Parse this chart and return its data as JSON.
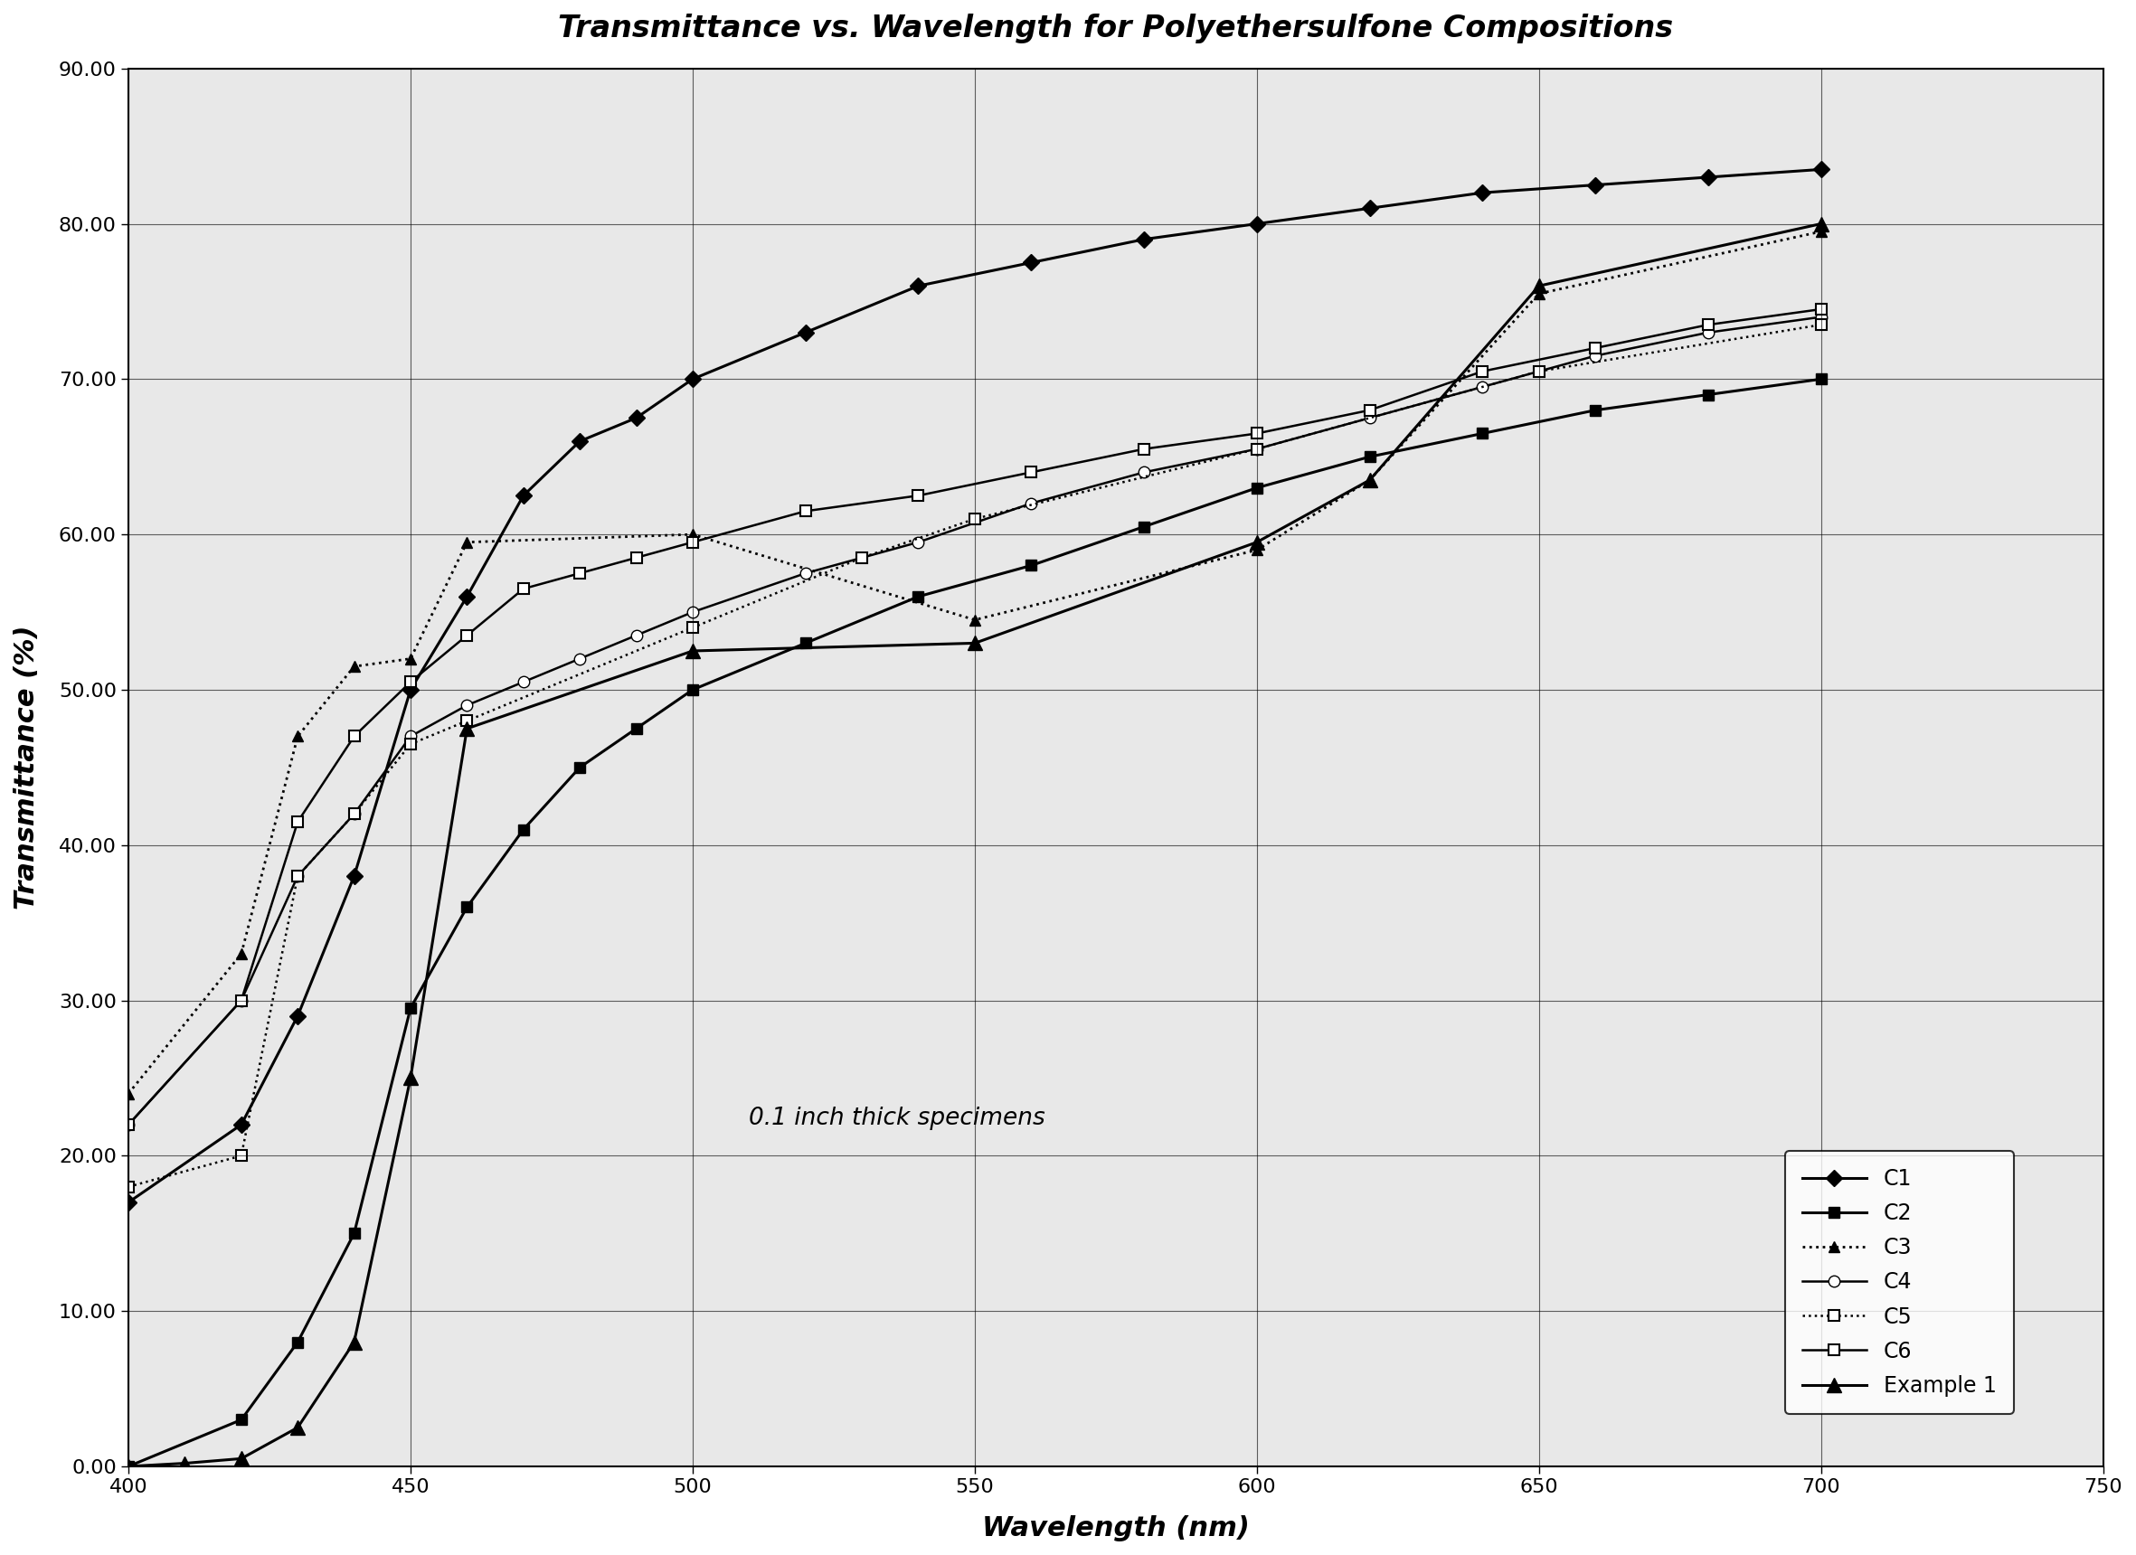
{
  "title": "Transmittance vs. Wavelength for Polyethersulfone Compositions",
  "xlabel": "Wavelength (nm)",
  "ylabel": "Transmittance (%)",
  "annotation": "0.1 inch thick specimens",
  "xlim": [
    400,
    750
  ],
  "ylim": [
    0.0,
    90.0
  ],
  "xticks": [
    400,
    450,
    500,
    550,
    600,
    650,
    700,
    750
  ],
  "yticks": [
    0.0,
    10.0,
    20.0,
    30.0,
    40.0,
    50.0,
    60.0,
    70.0,
    80.0,
    90.0
  ],
  "C1_x": [
    400,
    420,
    430,
    440,
    450,
    460,
    470,
    480,
    490,
    500,
    520,
    540,
    560,
    580,
    600,
    620,
    640,
    660,
    680,
    700
  ],
  "C1_y": [
    17.0,
    22.0,
    29.0,
    38.0,
    50.0,
    56.0,
    62.5,
    66.0,
    67.5,
    70.0,
    73.0,
    76.0,
    77.5,
    79.0,
    80.0,
    81.0,
    82.0,
    82.5,
    83.0,
    83.5
  ],
  "C2_x": [
    400,
    420,
    430,
    440,
    450,
    460,
    470,
    480,
    490,
    500,
    520,
    540,
    560,
    580,
    600,
    620,
    640,
    660,
    680,
    700
  ],
  "C2_y": [
    0.0,
    3.0,
    8.0,
    15.0,
    29.5,
    36.0,
    41.0,
    45.0,
    47.5,
    50.0,
    53.0,
    56.0,
    58.0,
    60.5,
    63.0,
    65.0,
    66.5,
    68.0,
    69.0,
    70.0
  ],
  "C3_x": [
    400,
    420,
    430,
    440,
    450,
    460,
    500,
    550,
    600,
    620,
    650,
    700
  ],
  "C3_y": [
    24.0,
    33.0,
    47.0,
    51.5,
    52.0,
    59.5,
    60.0,
    54.5,
    59.0,
    63.5,
    75.5,
    79.5
  ],
  "C4_x": [
    400,
    420,
    430,
    440,
    450,
    460,
    470,
    480,
    490,
    500,
    520,
    540,
    560,
    580,
    600,
    620,
    640,
    660,
    680,
    700
  ],
  "C4_y": [
    22.0,
    30.0,
    38.0,
    42.0,
    47.0,
    49.0,
    50.5,
    52.0,
    53.5,
    55.0,
    57.5,
    59.5,
    62.0,
    64.0,
    65.5,
    67.5,
    69.5,
    71.5,
    73.0,
    74.0
  ],
  "C5_x": [
    400,
    420,
    430,
    440,
    450,
    460,
    500,
    530,
    550,
    600,
    650,
    700
  ],
  "C5_y": [
    18.0,
    20.0,
    38.0,
    42.0,
    46.5,
    48.0,
    54.0,
    58.5,
    61.0,
    65.5,
    70.5,
    73.5
  ],
  "C6_x": [
    400,
    420,
    430,
    440,
    450,
    460,
    470,
    480,
    490,
    500,
    520,
    540,
    560,
    580,
    600,
    620,
    640,
    660,
    680,
    700
  ],
  "C6_y": [
    22.0,
    30.0,
    41.5,
    47.0,
    50.5,
    53.5,
    56.5,
    57.5,
    58.5,
    59.5,
    61.5,
    62.5,
    64.0,
    65.5,
    66.5,
    68.0,
    70.5,
    72.0,
    73.5,
    74.5
  ],
  "Ex1_x": [
    400,
    410,
    420,
    430,
    440,
    450,
    460,
    500,
    550,
    600,
    620,
    650,
    700
  ],
  "Ex1_y": [
    0.0,
    0.2,
    0.5,
    2.5,
    8.0,
    25.0,
    47.5,
    52.5,
    53.0,
    59.5,
    63.5,
    76.0,
    80.0
  ],
  "background_color": "#ffffff",
  "plot_bg_color": "#e8e8e8"
}
